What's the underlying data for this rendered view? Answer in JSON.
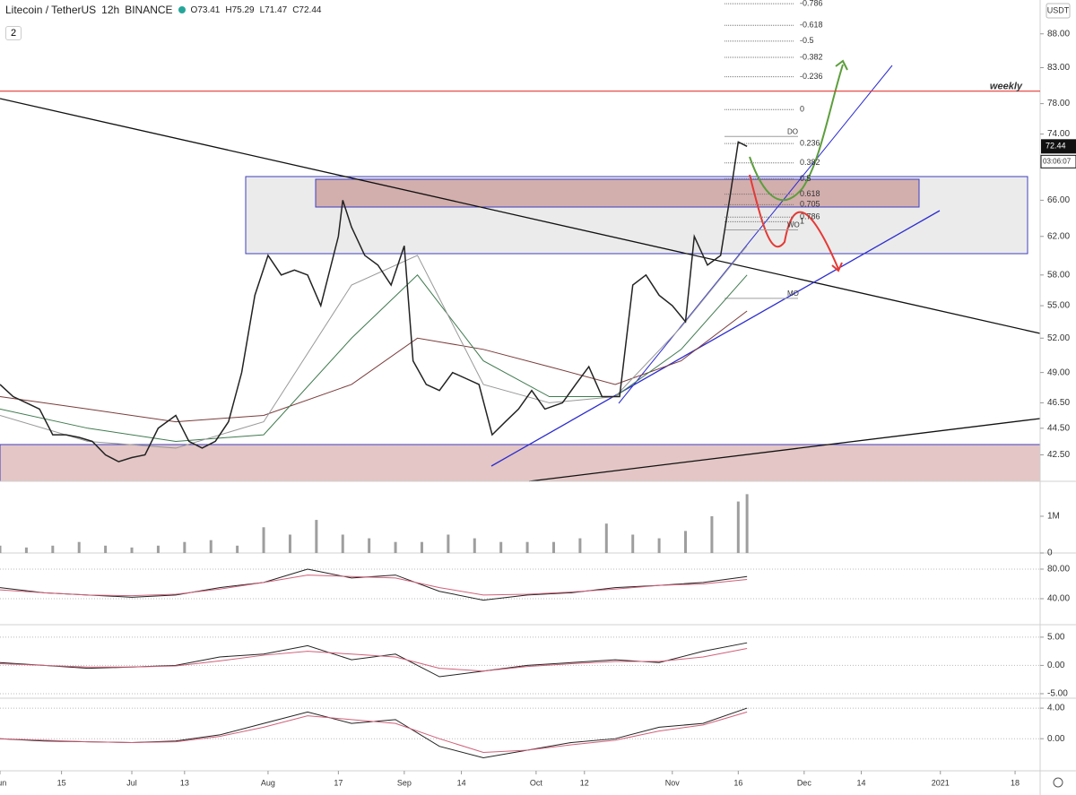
{
  "header": {
    "symbol": "Litecoin / TetherUS",
    "interval": "12h",
    "exchange": "BINANCE",
    "open": "O73.41",
    "high": "H75.29",
    "low": "L71.47",
    "close": "C72.44",
    "collapse": "2"
  },
  "currency": "USDT",
  "countdown": "03:06:07",
  "chart_data": [
    {
      "type": "line",
      "log_scale": true,
      "ylim": [
        40.6,
        93.3
      ],
      "xlim": [
        0,
        236.7
      ],
      "yticks": [
        {
          "value": 88,
          "label": "88.00"
        },
        {
          "value": 83,
          "label": "83.00"
        },
        {
          "value": 78,
          "label": "78.00"
        },
        {
          "value": 74,
          "label": "74.00"
        },
        {
          "value": 66,
          "label": "66.00"
        },
        {
          "value": 62,
          "label": "62.00"
        },
        {
          "value": 58,
          "label": "58.00"
        },
        {
          "value": 55,
          "label": "55.00"
        },
        {
          "value": 52,
          "label": "52.00"
        },
        {
          "value": 49,
          "label": "49.00"
        },
        {
          "value": 46.5,
          "label": "46.50"
        },
        {
          "value": 44.5,
          "label": "44.50"
        },
        {
          "value": 42.5,
          "label": "42.50"
        }
      ],
      "xticks": [
        {
          "value": 0,
          "label": "Jun"
        },
        {
          "value": 14,
          "label": "15"
        },
        {
          "value": 30,
          "label": "Jul"
        },
        {
          "value": 42,
          "label": "13"
        },
        {
          "value": 61,
          "label": "Aug"
        },
        {
          "value": 77,
          "label": "17"
        },
        {
          "value": 92,
          "label": "Sep"
        },
        {
          "value": 105,
          "label": "14"
        },
        {
          "value": 122,
          "label": "Oct"
        },
        {
          "value": 133,
          "label": "12"
        },
        {
          "value": 153,
          "label": "Nov"
        },
        {
          "value": 168,
          "label": "16"
        },
        {
          "value": 183,
          "label": "Dec"
        },
        {
          "value": 196,
          "label": "14"
        },
        {
          "value": 214,
          "label": "2021"
        },
        {
          "value": 231,
          "label": "18"
        }
      ],
      "x": [
        0,
        3,
        6,
        9,
        12,
        15,
        18,
        21,
        24,
        27,
        30,
        33,
        36,
        40,
        43,
        46,
        49,
        52,
        55,
        58,
        61,
        64,
        67,
        70,
        73,
        77,
        78,
        80,
        83,
        86,
        89,
        92,
        94,
        97,
        100,
        103,
        106,
        109,
        112,
        115,
        118,
        121,
        124,
        128,
        131,
        134,
        137,
        141,
        144,
        147,
        150,
        153,
        156,
        158,
        161,
        164,
        166,
        168,
        170
      ],
      "series": [
        {
          "color": "#222222",
          "values": [
            48,
            47,
            46.5,
            46,
            44,
            44,
            43.8,
            43.5,
            42.5,
            42,
            42.3,
            42.5,
            44.5,
            45.5,
            43.5,
            43,
            43.5,
            45,
            49,
            56,
            60,
            58,
            58.5,
            58,
            55,
            62,
            66,
            63,
            60,
            59,
            57,
            61,
            50,
            48,
            47.5,
            49,
            48.5,
            48,
            44,
            45,
            46,
            47.5,
            46,
            46.5,
            48,
            49.5,
            47,
            47,
            57,
            58,
            56,
            55,
            53.5,
            62,
            59,
            60,
            66,
            73,
            72.44
          ]
        }
      ],
      "ma_x": [
        0,
        20,
        40,
        60,
        80,
        95,
        110,
        125,
        140,
        155,
        170
      ],
      "ma_series": [
        {
          "color": "#7b3b3b",
          "values": [
            47,
            46,
            45,
            45.5,
            48,
            52,
            51,
            49.5,
            48,
            50,
            54.5
          ]
        },
        {
          "color": "#3f7a4f",
          "values": [
            46,
            44.5,
            43.5,
            44,
            52,
            58,
            50,
            47,
            47,
            51,
            58
          ]
        },
        {
          "color": "#999999",
          "values": [
            45.5,
            43.5,
            43,
            45,
            57,
            60,
            48,
            46.5,
            47,
            53,
            61
          ]
        }
      ],
      "fib_levels": [
        {
          "ratio": -0.786,
          "price": 92.7
        },
        {
          "ratio": -0.618,
          "price": 89.3
        },
        {
          "ratio": -0.5,
          "price": 86.9
        },
        {
          "ratio": -0.382,
          "price": 84.5
        },
        {
          "ratio": -0.236,
          "price": 81.7
        },
        {
          "ratio": 0,
          "price": 77.2
        },
        {
          "ratio": 0.236,
          "price": 72.8
        },
        {
          "ratio": 0.382,
          "price": 70.4
        },
        {
          "ratio": 0.5,
          "price": 68.5
        },
        {
          "ratio": 0.618,
          "price": 66.7
        },
        {
          "ratio": 0.705,
          "price": 65.5
        },
        {
          "ratio": 0.786,
          "price": 64.1
        },
        {
          "ratio": 1,
          "price": 63.6
        }
      ],
      "levels": [
        {
          "label": "weekly",
          "price": 79.7,
          "color": "#e53935"
        },
        {
          "label": "DO",
          "price": 73.7,
          "color": "#9e9e9e"
        },
        {
          "label": "WO",
          "price": 62.7,
          "color": "#9e9e9e"
        },
        {
          "label": "MO",
          "price": 55.7,
          "color": "#9e9e9e"
        }
      ]
    },
    {
      "type": "bar",
      "ylim": [
        0,
        1.95
      ],
      "xlim": [
        0,
        236.7
      ],
      "yticks": [
        {
          "value": 1,
          "label": "1M"
        },
        0
      ],
      "x": [
        0,
        6,
        12,
        18,
        24,
        30,
        36,
        42,
        48,
        54,
        60,
        66,
        72,
        78,
        84,
        90,
        96,
        102,
        108,
        114,
        120,
        126,
        132,
        138,
        144,
        150,
        156,
        162,
        168,
        170
      ],
      "color": "#9e9e9e",
      "values": [
        0.2,
        0.15,
        0.2,
        0.3,
        0.2,
        0.15,
        0.2,
        0.3,
        0.35,
        0.2,
        0.7,
        0.5,
        0.9,
        0.5,
        0.4,
        0.3,
        0.3,
        0.5,
        0.4,
        0.3,
        0.3,
        0.3,
        0.4,
        0.8,
        0.5,
        0.4,
        0.6,
        1.0,
        1.4,
        1.6
      ]
    },
    {
      "type": "line",
      "ylim": [
        4.8,
        101.8
      ],
      "xlim": [
        0,
        236.7
      ],
      "yticks": [
        {
          "value": 80,
          "label": "80.00"
        },
        {
          "value": 40,
          "label": "40.00"
        }
      ],
      "x": [
        0,
        10,
        20,
        30,
        40,
        50,
        60,
        70,
        80,
        90,
        100,
        110,
        120,
        130,
        140,
        150,
        160,
        170
      ],
      "series": [
        {
          "color": "#222222",
          "values": [
            55,
            48,
            45,
            42,
            45,
            55,
            62,
            80,
            68,
            72,
            50,
            38,
            45,
            48,
            55,
            58,
            62,
            70
          ]
        },
        {
          "color": "#d0607a",
          "values": [
            52,
            48,
            45,
            44,
            46,
            53,
            62,
            72,
            70,
            68,
            55,
            45,
            46,
            49,
            53,
            58,
            60,
            66
          ]
        }
      ]
    },
    {
      "type": "line",
      "ylim": [
        -5.8,
        7.2
      ],
      "xlim": [
        0,
        236.7
      ],
      "yticks": [
        {
          "value": 5,
          "label": "5.00"
        },
        {
          "value": 0,
          "label": "0.00"
        },
        {
          "value": -5,
          "label": "-5.00"
        }
      ],
      "x": [
        0,
        10,
        20,
        30,
        40,
        50,
        60,
        70,
        80,
        90,
        100,
        110,
        120,
        130,
        140,
        150,
        160,
        170
      ],
      "series": [
        {
          "color": "#222222",
          "values": [
            0.5,
            0,
            -0.5,
            -0.3,
            0,
            1.5,
            2,
            3.5,
            1,
            2,
            -2,
            -1,
            0,
            0.5,
            1,
            0.5,
            2.5,
            4
          ]
        },
        {
          "color": "#d0607a",
          "values": [
            0.3,
            0,
            -0.3,
            -0.3,
            -0.1,
            0.8,
            1.8,
            2.5,
            2,
            1.5,
            -0.5,
            -1,
            -0.2,
            0.3,
            0.7,
            0.7,
            1.5,
            3
          ]
        }
      ]
    },
    {
      "type": "line",
      "ylim": [
        -4.2,
        5.3
      ],
      "xlim": [
        0,
        236.7
      ],
      "yticks": [
        {
          "value": 4,
          "label": "4.00"
        },
        {
          "value": 0,
          "label": "0.00"
        }
      ],
      "x": [
        0,
        10,
        20,
        30,
        40,
        50,
        60,
        70,
        80,
        90,
        100,
        110,
        120,
        130,
        140,
        150,
        160,
        170
      ],
      "series": [
        {
          "color": "#222222",
          "values": [
            0,
            -0.3,
            -0.4,
            -0.5,
            -0.3,
            0.5,
            2,
            3.5,
            2,
            2.5,
            -1,
            -2.5,
            -1.5,
            -0.5,
            0,
            1.5,
            2,
            4
          ]
        },
        {
          "color": "#d0607a",
          "values": [
            0,
            -0.2,
            -0.4,
            -0.5,
            -0.4,
            0.3,
            1.5,
            3,
            2.5,
            2,
            0,
            -1.8,
            -1.5,
            -0.8,
            -0.2,
            1,
            1.8,
            3.5
          ]
        }
      ]
    }
  ]
}
